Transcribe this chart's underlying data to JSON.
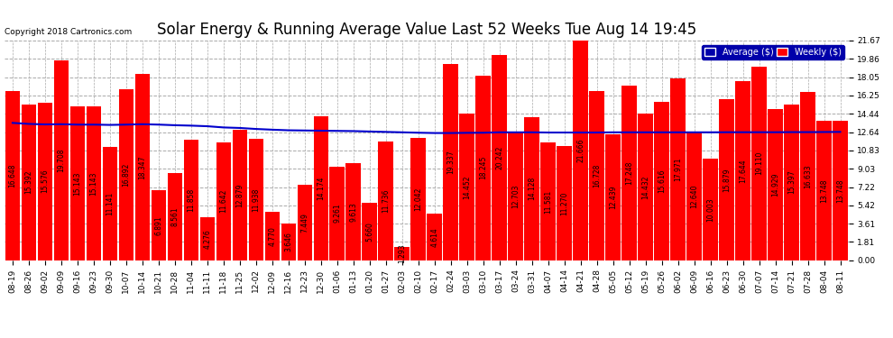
{
  "title": "Solar Energy & Running Average Value Last 52 Weeks Tue Aug 14 19:45",
  "copyright": "Copyright 2018 Cartronics.com",
  "bar_color": "#FF0000",
  "avg_line_color": "#0000CC",
  "background_color": "#FFFFFF",
  "plot_bg_color": "#FFFFFF",
  "grid_color": "#AAAAAA",
  "yticks": [
    0.0,
    1.81,
    3.61,
    5.42,
    7.22,
    9.03,
    10.83,
    12.64,
    14.44,
    16.25,
    18.05,
    19.86,
    21.67
  ],
  "categories": [
    "08-19",
    "08-26",
    "09-02",
    "09-09",
    "09-16",
    "09-23",
    "09-30",
    "10-07",
    "10-14",
    "10-21",
    "10-28",
    "11-04",
    "11-11",
    "11-18",
    "11-25",
    "12-02",
    "12-09",
    "12-16",
    "12-23",
    "12-30",
    "01-06",
    "01-13",
    "01-20",
    "01-27",
    "02-03",
    "02-10",
    "02-17",
    "02-24",
    "03-03",
    "03-10",
    "03-17",
    "03-24",
    "03-31",
    "04-07",
    "04-14",
    "04-21",
    "04-28",
    "05-05",
    "05-12",
    "05-19",
    "05-26",
    "06-02",
    "06-09",
    "06-16",
    "06-23",
    "06-30",
    "07-07",
    "07-14",
    "07-21",
    "07-28",
    "08-04",
    "08-11"
  ],
  "weekly_values": [
    16.648,
    15.392,
    15.576,
    19.708,
    15.143,
    15.143,
    11.141,
    16.892,
    18.347,
    6.891,
    8.561,
    11.858,
    4.276,
    11.642,
    12.879,
    11.938,
    4.77,
    3.646,
    7.449,
    14.174,
    9.261,
    9.613,
    5.66,
    11.736,
    1.293,
    12.042,
    4.614,
    19.337,
    14.452,
    18.245,
    20.242,
    12.703,
    14.128,
    11.581,
    11.27,
    21.666,
    16.728,
    12.439,
    17.248,
    14.432,
    15.616,
    17.971,
    12.64,
    10.003,
    15.879,
    17.644,
    19.11,
    14.929,
    15.397,
    16.633,
    13.748,
    13.748
  ],
  "avg_values": [
    13.55,
    13.45,
    13.4,
    13.42,
    13.38,
    13.38,
    13.35,
    13.38,
    13.42,
    13.38,
    13.32,
    13.28,
    13.22,
    13.1,
    13.05,
    12.95,
    12.88,
    12.82,
    12.8,
    12.78,
    12.76,
    12.74,
    12.7,
    12.66,
    12.62,
    12.58,
    12.55,
    12.55,
    12.57,
    12.58,
    12.62,
    12.62,
    12.62,
    12.6,
    12.6,
    12.6,
    12.6,
    12.62,
    12.62,
    12.62,
    12.62,
    12.62,
    12.62,
    12.62,
    12.63,
    12.63,
    12.63,
    12.63,
    12.64,
    12.64,
    12.65,
    12.66
  ],
  "legend_avg_bg": "#0000AA",
  "legend_weekly_bg": "#FF0000",
  "title_fontsize": 12,
  "tick_fontsize": 6.5,
  "bar_text_fontsize": 5.5,
  "ymax": 21.67,
  "ymin": 0.0
}
